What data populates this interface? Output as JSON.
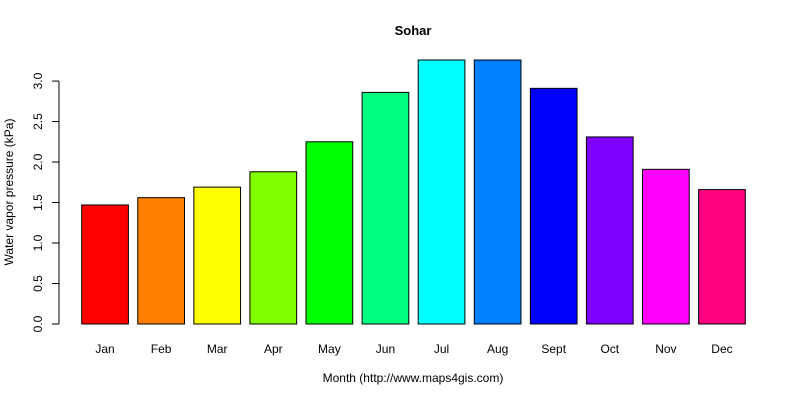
{
  "chart_data": {
    "type": "bar",
    "title": "Sohar",
    "xlabel": "Month (http://www.maps4gis.com)",
    "ylabel": "Water vapor pressure (kPa)",
    "categories": [
      "Jan",
      "Feb",
      "Mar",
      "Apr",
      "May",
      "Jun",
      "Jul",
      "Aug",
      "Sept",
      "Oct",
      "Nov",
      "Dec"
    ],
    "values": [
      1.47,
      1.56,
      1.69,
      1.88,
      2.25,
      2.86,
      3.26,
      3.26,
      2.91,
      2.31,
      1.91,
      1.66
    ],
    "colors": [
      "#ff0000",
      "#ff8000",
      "#ffff00",
      "#80ff00",
      "#00ff00",
      "#00ff80",
      "#00ffff",
      "#0080ff",
      "#0000ff",
      "#8000ff",
      "#ff00ff",
      "#ff0080"
    ],
    "yticks": [
      "0.0",
      "0.5",
      "1.0",
      "1.5",
      "2.0",
      "2.5",
      "3.0"
    ],
    "ylim": [
      0,
      3.26
    ],
    "grid": false,
    "legend": "none"
  }
}
